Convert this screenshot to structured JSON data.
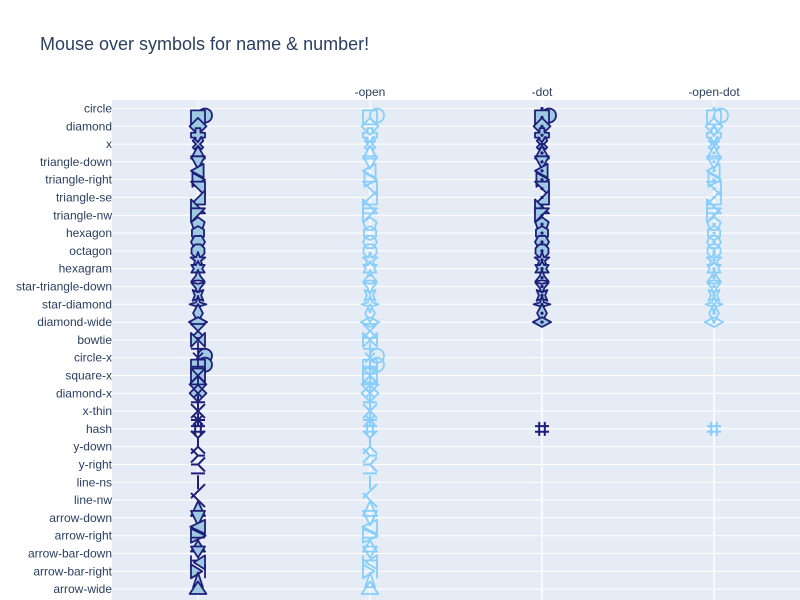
{
  "chart_data": {
    "type": "scatter",
    "title": "Mouse over symbols for name & number!",
    "x_tick_labels": [
      "",
      "-open",
      "-dot",
      "-open-dot"
    ],
    "y_tick_labels": [
      "circle",
      "diamond",
      "x",
      "triangle-down",
      "triangle-right",
      "triangle-se",
      "triangle-nw",
      "hexagon",
      "octagon",
      "hexagram",
      "star-triangle-down",
      "star-diamond",
      "diamond-wide",
      "bowtie",
      "circle-x",
      "square-x",
      "diamond-x",
      "x-thin",
      "hash",
      "y-down",
      "y-right",
      "line-ns",
      "line-nw",
      "arrow-down",
      "arrow-right",
      "arrow-bar-down",
      "arrow-bar-right",
      "arrow-wide"
    ],
    "symbols": [
      "circle",
      "square",
      "diamond",
      "cross",
      "x",
      "triangle-up",
      "triangle-down",
      "triangle-left",
      "triangle-right",
      "triangle-ne",
      "triangle-se",
      "triangle-sw",
      "triangle-nw",
      "pentagon",
      "hexagon",
      "hexagon2",
      "octagon",
      "star",
      "hexagram",
      "star-triangle-up",
      "star-triangle-down",
      "star-square",
      "star-diamond",
      "diamond-tall",
      "diamond-wide",
      "hourglass",
      "bowtie",
      "circle-cross",
      "circle-x",
      "square-cross",
      "square-x",
      "diamond-cross",
      "diamond-x",
      "cross-thin",
      "x-thin",
      "asterisk",
      "hash",
      "y-up",
      "y-down",
      "y-left",
      "y-right",
      "line-ew",
      "line-ns",
      "line-ne",
      "line-nw",
      "arrow-up",
      "arrow-down",
      "arrow-left",
      "arrow-right",
      "arrow-bar-up",
      "arrow-bar-down",
      "arrow-bar-left",
      "arrow-bar-right",
      "arrow",
      "arrow-wide"
    ],
    "series": [
      {
        "variant": "",
        "marker_fill": "#9ecae1",
        "marker_line": "#1f1f7a",
        "n_symbols": 55
      },
      {
        "variant": "-open",
        "marker_fill": "none",
        "marker_line": "#87cefa",
        "n_symbols": 55
      },
      {
        "variant": "-dot",
        "marker_fill": "#9ecae1",
        "marker_line": "#1f1f7a",
        "n_symbols": 25,
        "extra_symbol": "hash"
      },
      {
        "variant": "-open-dot",
        "marker_fill": "none",
        "marker_line": "#87cefa",
        "n_symbols": 25,
        "extra_symbol": "hash"
      }
    ],
    "x_range": [
      -0.5,
      3.5
    ],
    "grid": true,
    "legend": "none",
    "background": "#e5ecf6"
  }
}
